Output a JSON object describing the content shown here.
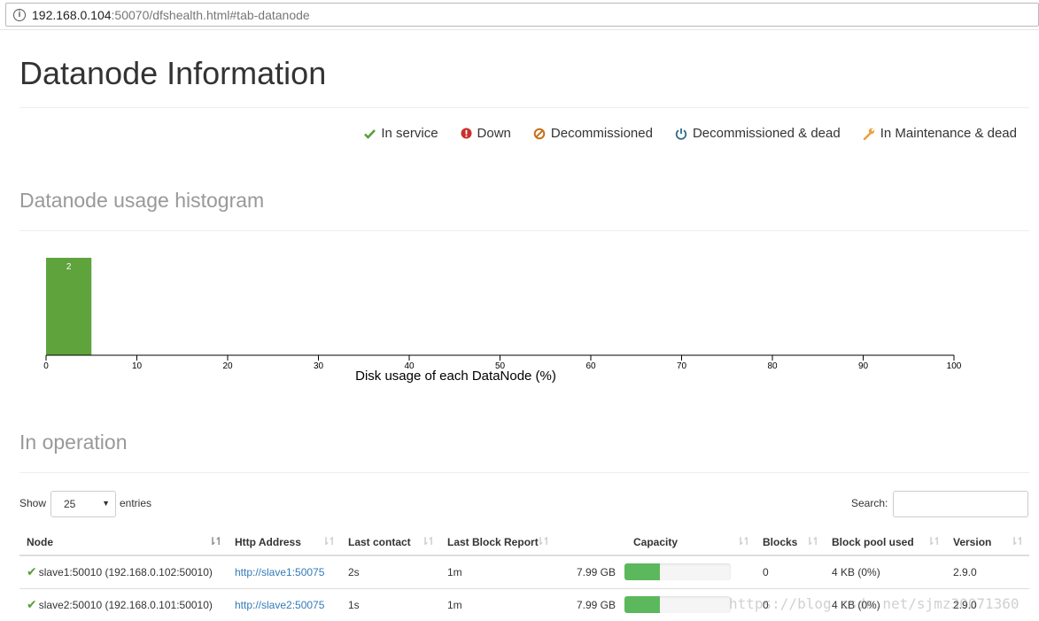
{
  "browser": {
    "url_host": "192.168.0.104",
    "url_rest": ":50070/dfshealth.html#tab-datanode"
  },
  "page_title": "Datanode Information",
  "legend": [
    {
      "label": "In service",
      "icon": "check-icon",
      "color": "#5a9e3c"
    },
    {
      "label": "Down",
      "icon": "exclamation-circle-icon",
      "color": "#c9302c"
    },
    {
      "label": "Decommissioned",
      "icon": "ban-icon",
      "color": "#c8701a"
    },
    {
      "label": "Decommissioned & dead",
      "icon": "power-icon",
      "color": "#2e6b8a"
    },
    {
      "label": "In Maintenance & dead",
      "icon": "wrench-icon",
      "color": "#f0a040"
    }
  ],
  "histogram_title": "Datanode usage histogram",
  "chart_data": {
    "type": "bar",
    "title": "",
    "xlabel": "Disk usage of each DataNode (%)",
    "ylabel": "",
    "x_ticks": [
      0,
      10,
      20,
      30,
      40,
      50,
      60,
      70,
      80,
      90,
      100
    ],
    "xlim": [
      0,
      100
    ],
    "bins": [
      {
        "start": 0,
        "end": 5,
        "count": 2,
        "label": "2"
      }
    ],
    "color": "#5fa33d",
    "grid": false
  },
  "operation_title": "In operation",
  "controls": {
    "show_label": "Show",
    "page_size": "25",
    "entries_label": "entries",
    "search_label": "Search:"
  },
  "table": {
    "headers": [
      "Node",
      "Http Address",
      "Last contact",
      "Last Block Report",
      "Capacity",
      "Blocks",
      "Block pool used",
      "Version"
    ],
    "rows": [
      {
        "node": "slave1:50010 (192.168.0.102:50010)",
        "http": "http://slave1:50075",
        "last_contact": "2s",
        "last_block_report": "1m",
        "capacity": "7.99 GB",
        "usage_fraction": 0.33,
        "blocks": "0",
        "block_pool_used": "4 KB (0%)",
        "version": "2.9.0"
      },
      {
        "node": "slave2:50010 (192.168.0.101:50010)",
        "http": "http://slave2:50075",
        "last_contact": "1s",
        "last_block_report": "1m",
        "capacity": "7.99 GB",
        "usage_fraction": 0.33,
        "blocks": "0",
        "block_pool_used": "4 KB (0%)",
        "version": "2.9.0"
      }
    ]
  },
  "watermark": "https://blog.csdn.net/sjmz30071360"
}
